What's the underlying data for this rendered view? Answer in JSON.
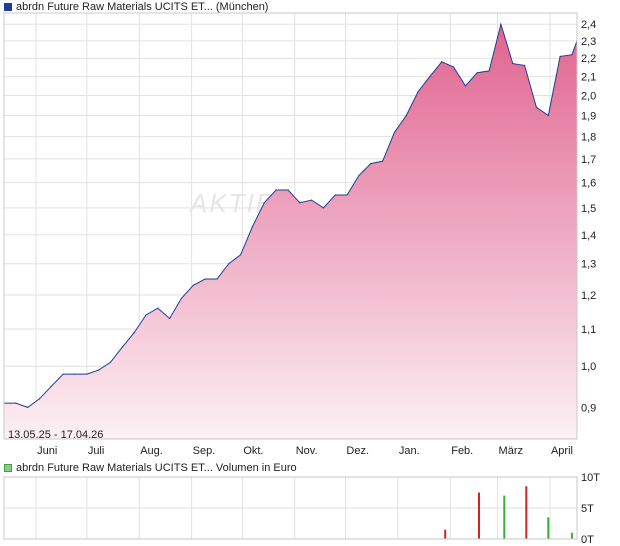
{
  "header": {
    "price_legend": "abrdn Future Raw Materials UCITS ET... (München)",
    "volume_legend": "abrdn Future Raw Materials UCITS ET... Volumen in Euro",
    "date_range": "13.05.25 - 17.04.26",
    "watermark": "AKTIE"
  },
  "colors": {
    "line": "#1c3f94",
    "area_top": "#e0648f",
    "area_bottom": "#fdf0f5",
    "volume_red": "#d02525",
    "volume_green": "#35b035",
    "grid": "#e2e2e2"
  },
  "chart_data": [
    {
      "type": "area",
      "series": [
        {
          "name": "abrdn Future Raw Materials UCITS ET... (München)"
        }
      ],
      "x_ticks": [
        "Juni",
        "Juli",
        "Aug.",
        "Sep.",
        "Okt.",
        "Nov.",
        "Dez.",
        "Jan.",
        "Feb.",
        "März",
        "April"
      ],
      "y_ticks": [
        "0,9",
        "1,0",
        "1,1",
        "1,2",
        "1,3",
        "1,4",
        "1,5",
        "1,6",
        "1,7",
        "1,8",
        "1,9",
        "2,0",
        "2,1",
        "2,2",
        "2,3",
        "2,4"
      ],
      "y_tick_values": [
        0.9,
        1.0,
        1.1,
        1.2,
        1.3,
        1.4,
        1.5,
        1.6,
        1.7,
        1.8,
        1.9,
        2.0,
        2.1,
        2.2,
        2.3,
        2.4
      ],
      "y_scale": "log",
      "ylim": [
        0.83,
        2.47
      ],
      "x_start": "2025-05-13",
      "x_end": "2026-04-17",
      "x": [
        "2025-05-13",
        "2025-05-20",
        "2025-05-27",
        "2025-06-03",
        "2025-06-10",
        "2025-06-17",
        "2025-06-24",
        "2025-07-01",
        "2025-07-08",
        "2025-07-15",
        "2025-07-22",
        "2025-07-29",
        "2025-08-05",
        "2025-08-12",
        "2025-08-19",
        "2025-08-26",
        "2025-09-02",
        "2025-09-09",
        "2025-09-16",
        "2025-09-23",
        "2025-09-30",
        "2025-10-07",
        "2025-10-14",
        "2025-10-21",
        "2025-10-28",
        "2025-11-04",
        "2025-11-11",
        "2025-11-18",
        "2025-11-25",
        "2025-12-02",
        "2025-12-09",
        "2025-12-16",
        "2025-12-23",
        "2025-12-30",
        "2026-01-06",
        "2026-01-13",
        "2026-01-20",
        "2026-01-27",
        "2026-02-03",
        "2026-02-10",
        "2026-02-17",
        "2026-02-24",
        "2026-03-03",
        "2026-03-10",
        "2026-03-17",
        "2026-03-24",
        "2026-03-31",
        "2026-04-07",
        "2026-04-14",
        "2026-04-17"
      ],
      "values": [
        0.91,
        0.91,
        0.9,
        0.92,
        0.95,
        0.98,
        0.98,
        0.98,
        0.99,
        1.01,
        1.05,
        1.09,
        1.14,
        1.16,
        1.13,
        1.19,
        1.23,
        1.25,
        1.25,
        1.3,
        1.33,
        1.43,
        1.52,
        1.57,
        1.57,
        1.52,
        1.53,
        1.5,
        1.55,
        1.55,
        1.63,
        1.68,
        1.69,
        1.82,
        1.9,
        2.02,
        2.1,
        2.18,
        2.15,
        2.05,
        2.12,
        2.13,
        2.4,
        2.17,
        2.16,
        1.94,
        1.9,
        2.21,
        2.22,
        2.3
      ]
    },
    {
      "type": "bar",
      "series": [
        {
          "name": "abrdn Future Raw Materials UCITS ET... Volumen in Euro"
        }
      ],
      "y_ticks": [
        "0T",
        "5T",
        "10T"
      ],
      "y_tick_values": [
        0,
        5,
        10
      ],
      "ylim": [
        0,
        10
      ],
      "x": [
        "2026-01-29",
        "2026-02-18",
        "2026-03-05",
        "2026-03-18",
        "2026-03-31",
        "2026-04-14"
      ],
      "values": [
        1.5,
        7.5,
        7.0,
        8.5,
        3.5,
        1.0
      ],
      "bar_colors": [
        "red",
        "red",
        "green",
        "red",
        "green",
        "green"
      ]
    }
  ]
}
